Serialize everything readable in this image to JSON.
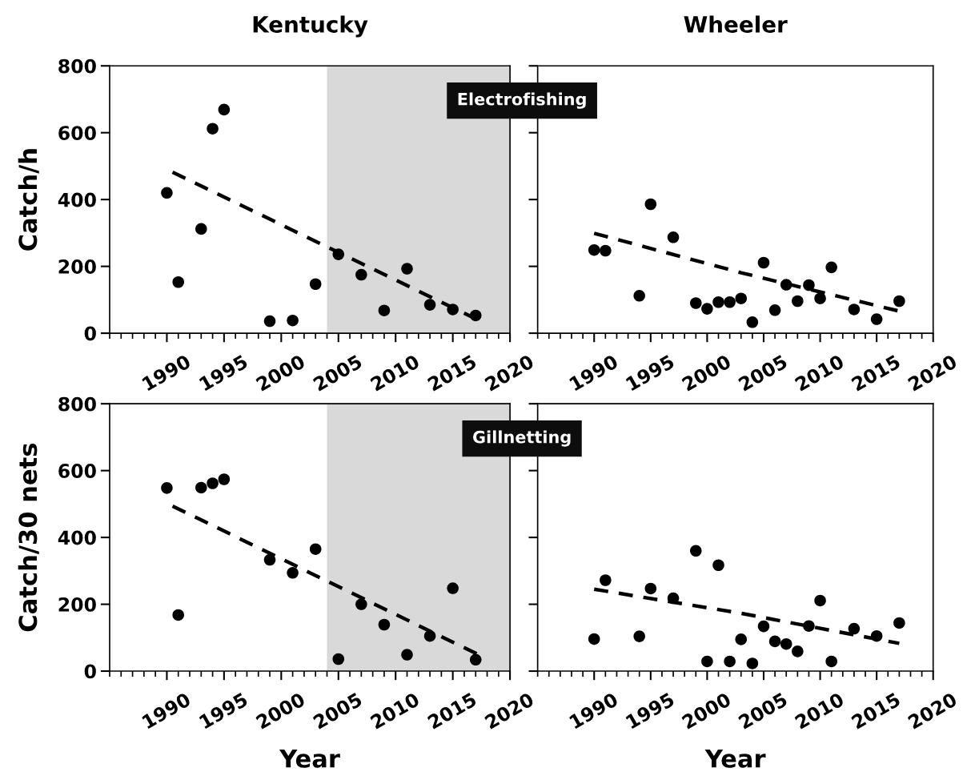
{
  "chart_data": [
    {
      "type": "scatter",
      "title": "Kentucky",
      "ylabel": "Catch/h",
      "xlim": [
        1985,
        2020
      ],
      "ylim": [
        0,
        800
      ],
      "yticks": [
        0,
        200,
        400,
        600,
        800
      ],
      "xticks": [
        1990,
        1995,
        2000,
        2005,
        2010,
        2015,
        2020
      ],
      "annotations": [
        "Electrofishing"
      ],
      "bands": [
        {
          "axis": "x",
          "from": 2004,
          "to": 2020,
          "color": "#d9d9d9"
        }
      ],
      "series": [
        {
          "type": "scatter",
          "color": "#000000",
          "marker": "circle",
          "x": [
            1990,
            1991,
            1993,
            1994,
            1995,
            1999,
            2001,
            2003,
            2005,
            2007,
            2009,
            2011,
            2013,
            2015,
            2017
          ],
          "values": [
            420,
            153,
            312,
            612,
            669,
            36,
            38,
            147,
            236,
            175,
            68,
            193,
            85,
            71,
            53
          ]
        },
        {
          "type": "line",
          "color": "#000000",
          "marker": "none",
          "line_style": "dashed",
          "x": [
            1990.5,
            2017.2
          ],
          "values": [
            482,
            40
          ]
        }
      ]
    },
    {
      "type": "scatter",
      "title": "Wheeler",
      "xlim": [
        1985,
        2020
      ],
      "ylim": [
        0,
        800
      ],
      "yticks": [
        0,
        200,
        400,
        600,
        800
      ],
      "xticks": [
        1990,
        1995,
        2000,
        2005,
        2010,
        2015,
        2020
      ],
      "tick_labels": "x",
      "series": [
        {
          "type": "scatter",
          "color": "#000000",
          "marker": "circle",
          "x": [
            1990,
            1991,
            1994,
            1995,
            1997,
            1999,
            2000,
            2001,
            2002,
            2003,
            2004,
            2005,
            2006,
            2007,
            2008,
            2009,
            2010,
            2011,
            2013,
            2015,
            2017
          ],
          "values": [
            249,
            247,
            112,
            386,
            287,
            90,
            73,
            93,
            93,
            104,
            33,
            211,
            69,
            145,
            96,
            144,
            104,
            197,
            71,
            42,
            96
          ]
        },
        {
          "type": "line",
          "color": "#000000",
          "marker": "none",
          "line_style": "dashed",
          "x": [
            1990,
            2003,
            2017
          ],
          "values": [
            299,
            181,
            66
          ]
        }
      ]
    },
    {
      "type": "scatter",
      "xlabel": "Year",
      "ylabel": "Catch/30 nets",
      "xlim": [
        1985,
        2020
      ],
      "ylim": [
        0,
        800
      ],
      "yticks": [
        0,
        200,
        400,
        600,
        800
      ],
      "xticks": [
        1990,
        1995,
        2000,
        2005,
        2010,
        2015,
        2020
      ],
      "annotations": [
        "Gillnetting"
      ],
      "bands": [
        {
          "axis": "x",
          "from": 2004,
          "to": 2020,
          "color": "#d9d9d9"
        }
      ],
      "series": [
        {
          "type": "scatter",
          "color": "#000000",
          "marker": "circle",
          "x": [
            1990,
            1991,
            1993,
            1994,
            1995,
            1999,
            2001,
            2003,
            2005,
            2007,
            2009,
            2011,
            2013,
            2015,
            2017
          ],
          "values": [
            548,
            168,
            549,
            562,
            574,
            333,
            294,
            365,
            36,
            200,
            139,
            49,
            105,
            248,
            34
          ]
        },
        {
          "type": "line",
          "color": "#000000",
          "marker": "none",
          "line_style": "dashed",
          "x": [
            1990.5,
            2017.2
          ],
          "values": [
            494,
            50
          ]
        }
      ]
    },
    {
      "type": "scatter",
      "xlabel": "Year",
      "xlim": [
        1985,
        2020
      ],
      "ylim": [
        0,
        800
      ],
      "yticks": [
        0,
        200,
        400,
        600,
        800
      ],
      "xticks": [
        1990,
        1995,
        2000,
        2005,
        2010,
        2015,
        2020
      ],
      "tick_labels": "x",
      "series": [
        {
          "type": "scatter",
          "color": "#000000",
          "marker": "circle",
          "x": [
            1990,
            1991,
            1994,
            1995,
            1997,
            1999,
            2000,
            2001,
            2002,
            2003,
            2004,
            2005,
            2006,
            2007,
            2008,
            2009,
            2010,
            2011,
            2013,
            2015,
            2017
          ],
          "values": [
            96,
            272,
            104,
            247,
            218,
            360,
            29,
            317,
            29,
            95,
            23,
            134,
            89,
            81,
            59,
            135,
            211,
            29,
            127,
            105,
            144
          ]
        },
        {
          "type": "line",
          "color": "#000000",
          "marker": "none",
          "line_style": "dashed",
          "x": [
            1990,
            2003,
            2017
          ],
          "values": [
            245,
            173,
            83
          ]
        }
      ]
    }
  ]
}
